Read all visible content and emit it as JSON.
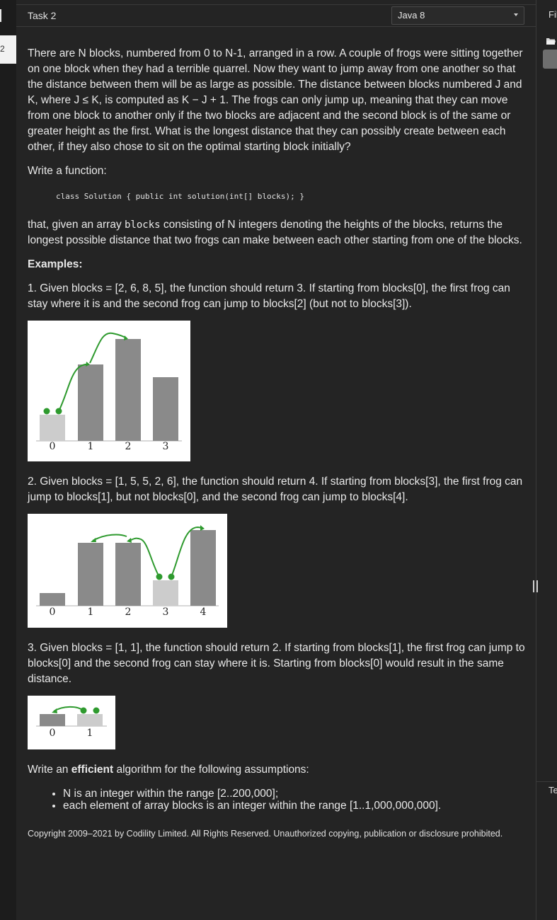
{
  "left_rail": {
    "tab_label": "2"
  },
  "header": {
    "task_title": "Task 2",
    "language_select": {
      "selected": "Java 8"
    }
  },
  "right_pane": {
    "files_label": "Fil",
    "tests_label": "Te"
  },
  "problem": {
    "statement": "There are N blocks, numbered from 0 to N-1, arranged in a row. A couple of frogs were sitting together on one block when they had a terrible quarrel. Now they want to jump away from one another so that the distance between them will be as large as possible. The distance between blocks numbered J and K, where J ≤ K, is computed as K − J + 1. The frogs can only jump up, meaning that they can move from one block to another only if the two blocks are adjacent and the second block is of the same or greater height as the first. What is the longest distance that they can possibly create between each other, if they also chose to sit on the optimal starting block initially?",
    "write_function": "Write a function:",
    "signature": "class Solution { public int solution(int[] blocks); }",
    "desc_pre": "that, given an array ",
    "desc_code": "blocks",
    "desc_post": " consisting of N integers denoting the heights of the blocks, returns the longest possible distance that two frogs can make between each other starting from one of the blocks.",
    "examples_heading": "Examples:",
    "examples": [
      {
        "text": "1. Given blocks = [2, 6, 8, 5], the function should return 3. If starting from blocks[0], the first frog can stay where it is and the second frog can jump to blocks[2] (but not to blocks[3]).",
        "blocks": [
          2,
          6,
          8,
          5
        ],
        "labels": [
          "0",
          "1",
          "2",
          "3"
        ]
      },
      {
        "text": "2. Given blocks = [1, 5, 5, 2, 6], the function should return 4. If starting from blocks[3], the first frog can jump to blocks[1], but not blocks[0], and the second frog can jump to blocks[4].",
        "blocks": [
          1,
          5,
          5,
          2,
          6
        ],
        "labels": [
          "0",
          "1",
          "2",
          "3",
          "4"
        ]
      },
      {
        "text": "3. Given blocks = [1, 1], the function should return 2. If starting from blocks[1], the first frog can jump to blocks[0] and the second frog can stay where it is. Starting from blocks[0] would result in the same distance.",
        "blocks": [
          1,
          1
        ],
        "labels": [
          "0",
          "1"
        ]
      }
    ],
    "assumptions_pre": "Write an ",
    "assumptions_bold": "efficient",
    "assumptions_post": " algorithm for the following assumptions:",
    "assumptions": [
      "N is an integer within the range [2..200,000];",
      "each element of array blocks is an integer within the range [1..1,000,000,000]."
    ],
    "copyright": "Copyright 2009–2021 by Codility Limited. All Rights Reserved. Unauthorized copying, publication or disclosure prohibited."
  },
  "colors": {
    "block_dark": "#8a8a8a",
    "block_light": "#cccccc",
    "frog_green": "#2e9a2e"
  }
}
